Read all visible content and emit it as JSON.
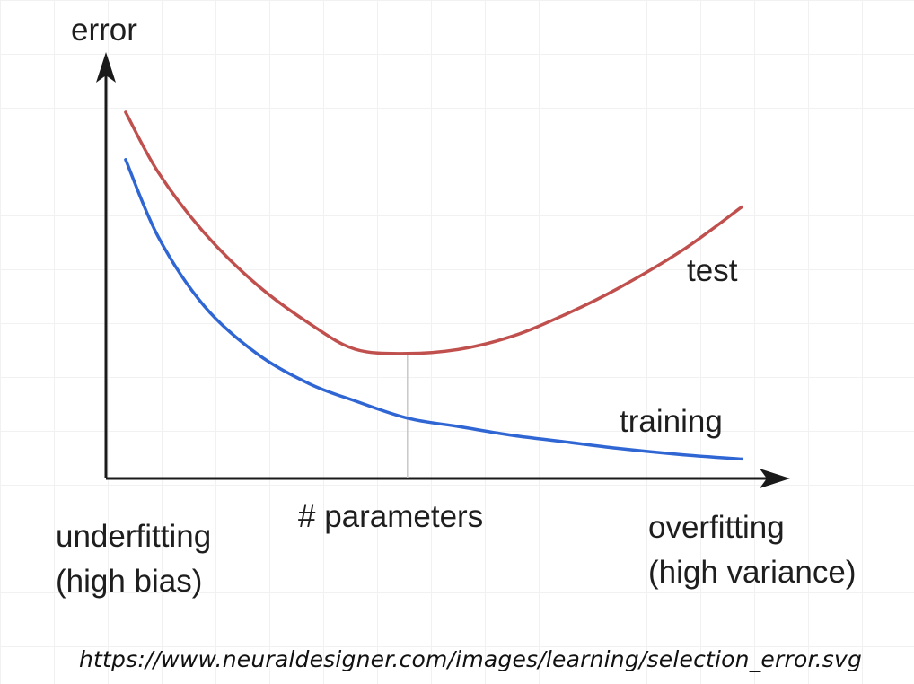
{
  "chart_data": {
    "type": "line",
    "title": "",
    "ylabel": "error",
    "xlabel": "# parameters",
    "xlim": [
      0,
      1
    ],
    "ylim": [
      0,
      1
    ],
    "grid": false,
    "annotations": {
      "left_regime": {
        "line1": "underfitting",
        "line2": "(high bias)"
      },
      "right_regime": {
        "line1": "overfitting",
        "line2": "(high variance)"
      },
      "optimum_x": 0.46
    },
    "series": [
      {
        "name": "test",
        "color": "#c0504d",
        "x": [
          0.03,
          0.08,
          0.15,
          0.23,
          0.31,
          0.38,
          0.46,
          0.54,
          0.62,
          0.7,
          0.78,
          0.88,
          0.97
        ],
        "y": [
          0.85,
          0.71,
          0.57,
          0.45,
          0.36,
          0.3,
          0.29,
          0.3,
          0.33,
          0.38,
          0.44,
          0.53,
          0.63
        ]
      },
      {
        "name": "training",
        "color": "#2f66d4",
        "x": [
          0.03,
          0.08,
          0.15,
          0.23,
          0.31,
          0.38,
          0.46,
          0.54,
          0.62,
          0.7,
          0.78,
          0.88,
          0.97
        ],
        "y": [
          0.74,
          0.56,
          0.4,
          0.29,
          0.22,
          0.18,
          0.14,
          0.12,
          0.1,
          0.085,
          0.07,
          0.055,
          0.045
        ]
      }
    ]
  },
  "source_url": "https://www.neuraldesigner.com/images/learning/selection_error.svg"
}
